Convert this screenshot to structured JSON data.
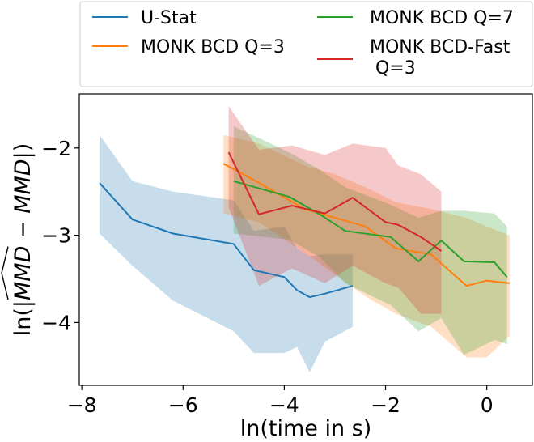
{
  "chart_data": {
    "type": "line",
    "xlabel": "ln(time in s)",
    "ylabel_prefix": "ln(|",
    "ylabel_hat": "MMD",
    "ylabel_minus": " − ",
    "ylabel_plain": "MMD",
    "ylabel_suffix": "|)",
    "xlim": [
      -8.05,
      0.9
    ],
    "ylim": [
      -4.72,
      -1.38
    ],
    "xticks": [
      -8,
      -6,
      -4,
      -2,
      0
    ],
    "xtick_labels": [
      "−8",
      "−6",
      "−4",
      "−2",
      "0"
    ],
    "yticks": [
      -2,
      -3,
      -4
    ],
    "ytick_labels": [
      "−2",
      "−3",
      "−4"
    ],
    "legend": {
      "placement": "top, above plot, 2 columns"
    },
    "series": [
      {
        "name": "U-Stat",
        "color": "#1f77b4",
        "x": [
          -7.65,
          -7.0,
          -6.2,
          -5.0,
          -4.6,
          -4.0,
          -3.75,
          -3.5,
          -3.2,
          -2.65
        ],
        "y": [
          -2.4,
          -2.82,
          -2.98,
          -3.1,
          -3.4,
          -3.48,
          -3.63,
          -3.71,
          -3.67,
          -3.58
        ],
        "band_x": [
          -7.65,
          -7.0,
          -6.2,
          -5.0,
          -4.6,
          -4.0,
          -3.75,
          -3.5,
          -3.2,
          -2.65
        ],
        "band_upper": [
          -1.85,
          -2.38,
          -2.5,
          -2.6,
          -2.95,
          -2.9,
          -3.15,
          -3.24,
          -3.22,
          -3.22
        ],
        "band_lower": [
          -2.98,
          -3.35,
          -3.75,
          -4.1,
          -4.35,
          -4.35,
          -4.28,
          -4.57,
          -4.22,
          -4.05
        ]
      },
      {
        "name": "MONK BCD Q=3",
        "color": "#ff7f0e",
        "x": [
          -5.2,
          -4.5,
          -3.6,
          -3.0,
          -2.4,
          -1.8,
          -1.1,
          -0.4,
          0.0,
          0.45
        ],
        "y": [
          -2.18,
          -2.4,
          -2.7,
          -2.8,
          -2.9,
          -3.15,
          -3.22,
          -3.58,
          -3.52,
          -3.55
        ],
        "band_x": [
          -5.2,
          -4.5,
          -3.6,
          -3.0,
          -2.4,
          -1.8,
          -1.1,
          -0.4,
          0.0,
          0.45
        ],
        "band_upper": [
          -1.85,
          -1.95,
          -2.2,
          -2.3,
          -2.45,
          -2.62,
          -2.7,
          -2.8,
          -2.9,
          -3.0
        ],
        "band_lower": [
          -2.75,
          -2.85,
          -3.2,
          -3.45,
          -3.7,
          -3.9,
          -4.05,
          -4.4,
          -4.4,
          -4.15
        ]
      },
      {
        "name": "MONK BCD Q=7",
        "color": "#2ca02c",
        "x": [
          -5.0,
          -3.9,
          -3.3,
          -2.8,
          -1.9,
          -1.35,
          -0.9,
          -0.45,
          0.15,
          0.4
        ],
        "y": [
          -2.38,
          -2.56,
          -2.76,
          -2.95,
          -3.02,
          -3.3,
          -3.06,
          -3.3,
          -3.31,
          -3.48
        ],
        "band_x": [
          -5.0,
          -3.9,
          -3.3,
          -2.8,
          -1.9,
          -1.35,
          -0.9,
          -0.45,
          0.15,
          0.4
        ],
        "band_upper": [
          -1.75,
          -2.05,
          -2.25,
          -2.45,
          -2.65,
          -2.8,
          -2.72,
          -2.72,
          -2.75,
          -2.9
        ],
        "band_lower": [
          -2.98,
          -3.05,
          -3.25,
          -3.55,
          -3.8,
          -4.1,
          -3.95,
          -4.37,
          -4.2,
          -4.25
        ]
      },
      {
        "name": "MONK BCD-Fast\n Q=3",
        "color": "#d62728",
        "x": [
          -5.1,
          -4.5,
          -3.85,
          -3.2,
          -2.65,
          -2.0,
          -1.75,
          -1.3,
          -0.9
        ],
        "y": [
          -2.05,
          -2.76,
          -2.66,
          -2.75,
          -2.57,
          -2.85,
          -2.88,
          -3.02,
          -3.18
        ],
        "band_x": [
          -5.1,
          -4.5,
          -3.85,
          -3.2,
          -2.65,
          -2.0,
          -1.75,
          -1.3,
          -0.9
        ],
        "band_upper": [
          -1.52,
          -2.02,
          -1.97,
          -2.08,
          -1.95,
          -2.0,
          -2.2,
          -2.3,
          -2.5
        ],
        "band_lower": [
          -2.68,
          -3.58,
          -3.38,
          -3.55,
          -3.35,
          -3.55,
          -3.6,
          -3.9,
          -3.9
        ]
      }
    ]
  }
}
